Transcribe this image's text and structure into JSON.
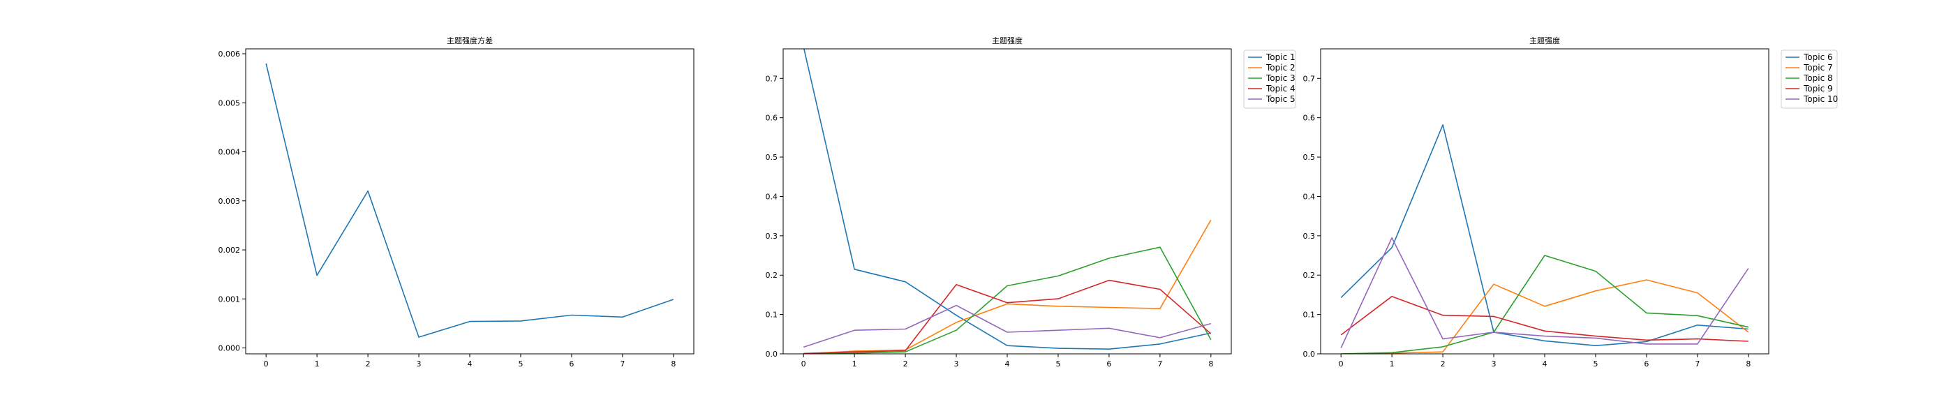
{
  "chart_data": [
    {
      "type": "line",
      "title": "主题强度方差",
      "xlabel": "",
      "ylabel": "",
      "x": [
        0,
        1,
        2,
        3,
        4,
        5,
        6,
        7,
        8
      ],
      "xlim": [
        -0.4,
        8.4
      ],
      "ylim": [
        -0.00012,
        0.0061
      ],
      "xticks": [
        "0",
        "1",
        "2",
        "3",
        "4",
        "5",
        "6",
        "7",
        "8"
      ],
      "yticks": [
        "0.000",
        "0.001",
        "0.002",
        "0.003",
        "0.004",
        "0.005",
        "0.006"
      ],
      "yticks_values": [
        0,
        0.001,
        0.002,
        0.003,
        0.004,
        0.005,
        0.006
      ],
      "grid": false,
      "series": [
        {
          "values": [
            0.0058,
            0.00148,
            0.0032,
            0.00022,
            0.00054,
            0.00055,
            0.00067,
            0.00063,
            0.00099
          ],
          "color": "#1f77b4"
        }
      ]
    },
    {
      "type": "line",
      "title": "主题强度",
      "xlabel": "",
      "ylabel": "",
      "x": [
        0,
        1,
        2,
        3,
        4,
        5,
        6,
        7,
        8
      ],
      "xlim": [
        -0.4,
        8.4
      ],
      "ylim": [
        0,
        0.775
      ],
      "xticks": [
        "0",
        "1",
        "2",
        "3",
        "4",
        "5",
        "6",
        "7",
        "8"
      ],
      "yticks": [
        "0.0",
        "0.1",
        "0.2",
        "0.3",
        "0.4",
        "0.5",
        "0.6",
        "0.7"
      ],
      "yticks_values": [
        0,
        0.1,
        0.2,
        0.3,
        0.4,
        0.5,
        0.6,
        0.7
      ],
      "grid": false,
      "legend": "outside-right-top",
      "series": [
        {
          "name": "Topic 1",
          "color": "#1f77b4",
          "values": [
            0.78,
            0.215,
            0.183,
            0.098,
            0.021,
            0.014,
            0.012,
            0.025,
            0.053
          ]
        },
        {
          "name": "Topic 2",
          "color": "#ff7f0e",
          "values": [
            0.0,
            0.007,
            0.01,
            0.08,
            0.127,
            0.121,
            0.118,
            0.115,
            0.34
          ]
        },
        {
          "name": "Topic 3",
          "color": "#2ca02c",
          "values": [
            0.0,
            0.002,
            0.005,
            0.06,
            0.173,
            0.198,
            0.243,
            0.271,
            0.036
          ]
        },
        {
          "name": "Topic 4",
          "color": "#d62728",
          "values": [
            0.001,
            0.005,
            0.008,
            0.176,
            0.13,
            0.14,
            0.187,
            0.164,
            0.051
          ]
        },
        {
          "name": "Topic 5",
          "color": "#9467bd",
          "values": [
            0.017,
            0.06,
            0.063,
            0.123,
            0.055,
            0.06,
            0.065,
            0.041,
            0.077
          ]
        }
      ]
    },
    {
      "type": "line",
      "title": "主题强度",
      "xlabel": "",
      "ylabel": "",
      "x": [
        0,
        1,
        2,
        3,
        4,
        5,
        6,
        7,
        8
      ],
      "xlim": [
        -0.4,
        8.4
      ],
      "ylim": [
        0,
        0.775
      ],
      "xticks": [
        "0",
        "1",
        "2",
        "3",
        "4",
        "5",
        "6",
        "7",
        "8"
      ],
      "yticks": [
        "0.0",
        "0.1",
        "0.2",
        "0.3",
        "0.4",
        "0.5",
        "0.6",
        "0.7"
      ],
      "yticks_values": [
        0,
        0.1,
        0.2,
        0.3,
        0.4,
        0.5,
        0.6,
        0.7
      ],
      "grid": false,
      "legend": "outside-right-top",
      "series": [
        {
          "name": "Topic 6",
          "color": "#1f77b4",
          "values": [
            0.143,
            0.27,
            0.582,
            0.055,
            0.033,
            0.021,
            0.031,
            0.073,
            0.063
          ]
        },
        {
          "name": "Topic 7",
          "color": "#ff7f0e",
          "values": [
            0.0,
            0.002,
            0.005,
            0.177,
            0.121,
            0.16,
            0.188,
            0.155,
            0.055
          ]
        },
        {
          "name": "Topic 8",
          "color": "#2ca02c",
          "values": [
            0.0,
            0.003,
            0.018,
            0.055,
            0.25,
            0.21,
            0.104,
            0.097,
            0.068
          ]
        },
        {
          "name": "Topic 9",
          "color": "#d62728",
          "values": [
            0.048,
            0.146,
            0.098,
            0.095,
            0.058,
            0.045,
            0.035,
            0.038,
            0.032
          ]
        },
        {
          "name": "Topic 10",
          "color": "#9467bd",
          "values": [
            0.015,
            0.295,
            0.038,
            0.055,
            0.045,
            0.04,
            0.025,
            0.025,
            0.217
          ]
        }
      ]
    }
  ]
}
